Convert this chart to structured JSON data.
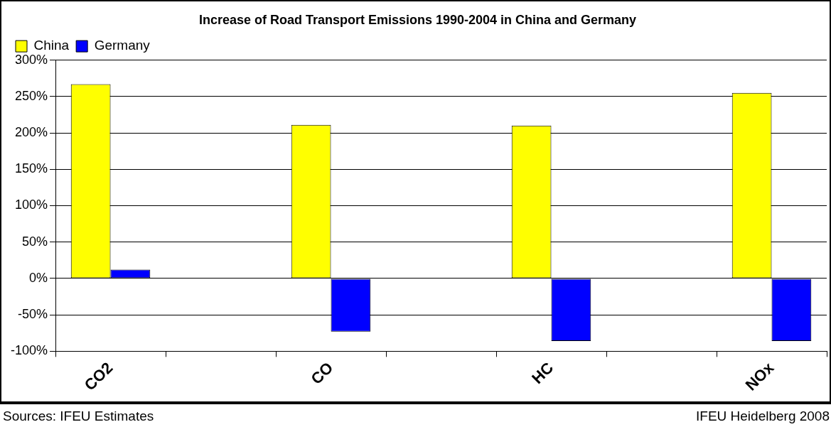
{
  "chart_data": {
    "type": "bar",
    "title": "Increase of Road Transport Emissions 1990-2004 in China and Germany",
    "categories": [
      "CO2",
      null,
      "CO",
      null,
      "HC",
      null,
      "NOx"
    ],
    "series": [
      {
        "name": "China",
        "color": "#ffff00",
        "values": [
          267,
          null,
          211,
          null,
          210,
          null,
          255
        ]
      },
      {
        "name": "Germany",
        "color": "#0000ff",
        "values": [
          12,
          null,
          -73,
          null,
          -86,
          null,
          -86
        ]
      }
    ],
    "ylim": [
      -100,
      300
    ],
    "yticks": [
      {
        "value": -100,
        "label": "-100%"
      },
      {
        "value": -50,
        "label": "-50%"
      },
      {
        "value": 0,
        "label": "0%"
      },
      {
        "value": 50,
        "label": "50%"
      },
      {
        "value": 100,
        "label": "100%"
      },
      {
        "value": 150,
        "label": "150%"
      },
      {
        "value": 200,
        "label": "200%"
      },
      {
        "value": 250,
        "label": "250%"
      },
      {
        "value": 300,
        "label": "300%"
      }
    ],
    "grid": "y",
    "legend": "top left",
    "annotations": [
      "Sources: IFEU Estimates",
      "IFEU Heidelberg 2008"
    ]
  }
}
